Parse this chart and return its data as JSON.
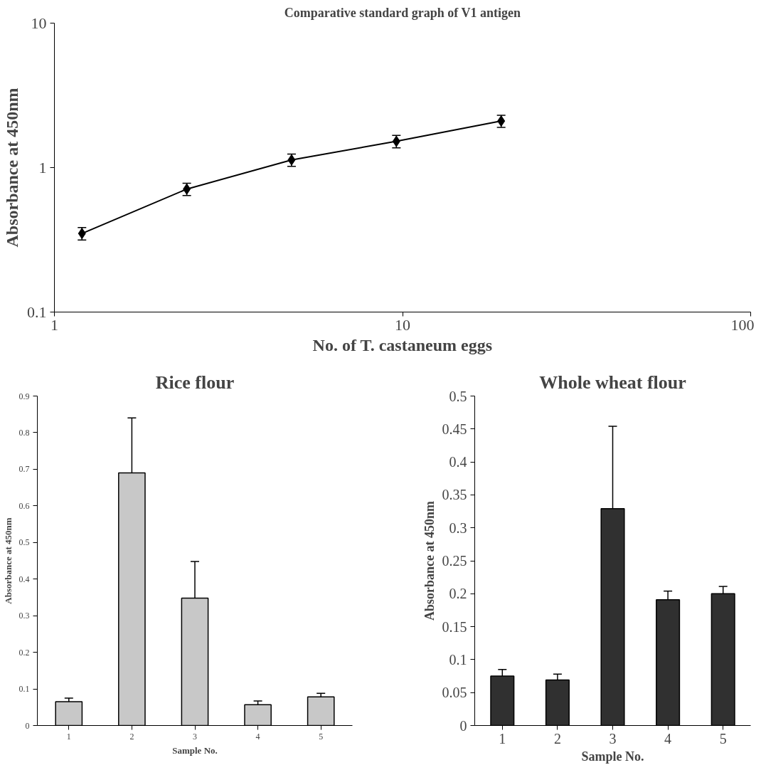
{
  "chart_data": [
    {
      "type": "line",
      "title": "Comparative standard graph of V1 antigen",
      "xlabel": "No. of T. castaneum eggs",
      "ylabel": "Absorbance at 450nm",
      "log": "xy",
      "grid": false,
      "marker": "diamond",
      "line_style": "solid",
      "x": [
        1.2,
        2.4,
        4.8,
        9.6,
        19.2
      ],
      "series": [
        {
          "color": "#000000",
          "values": [
            0.35,
            0.71,
            1.13,
            1.52,
            2.1
          ],
          "errors": [
            0.035,
            0.07,
            0.11,
            0.15,
            0.2
          ]
        }
      ],
      "xlim": [
        1,
        100
      ],
      "xticks": [
        1,
        10,
        100
      ],
      "ylim": [
        0.1,
        10
      ],
      "yticks": [
        0.1,
        1,
        10
      ]
    },
    {
      "type": "bar",
      "title": "Rice flour",
      "xlabel": "Sample No.",
      "ylabel": "Absorbance at 450nm",
      "grid": false,
      "categories": [
        "1",
        "2",
        "3",
        "4",
        "5"
      ],
      "series": [
        {
          "color": "#c8c8c8",
          "values": [
            0.065,
            0.69,
            0.348,
            0.057,
            0.078
          ],
          "errors": [
            0.01,
            0.15,
            0.1,
            0.01,
            0.01
          ]
        }
      ],
      "ylim": [
        0,
        0.9
      ],
      "yticks": [
        0,
        0.1,
        0.2,
        0.3,
        0.4,
        0.5,
        0.6,
        0.7,
        0.8,
        0.9
      ]
    },
    {
      "type": "bar",
      "title": "Whole wheat flour",
      "xlabel": "Sample No.",
      "ylabel": "Absorbance at 450nm",
      "grid": false,
      "categories": [
        "1",
        "2",
        "3",
        "4",
        "5"
      ],
      "series": [
        {
          "color": "#303030",
          "values": [
            0.075,
            0.069,
            0.329,
            0.191,
            0.2
          ],
          "errors": [
            0.01,
            0.009,
            0.125,
            0.013,
            0.011
          ]
        }
      ],
      "ylim": [
        0,
        0.5
      ],
      "yticks": [
        0,
        0.05,
        0.1,
        0.15,
        0.2,
        0.25,
        0.3,
        0.35,
        0.4,
        0.45,
        0.5
      ]
    }
  ]
}
